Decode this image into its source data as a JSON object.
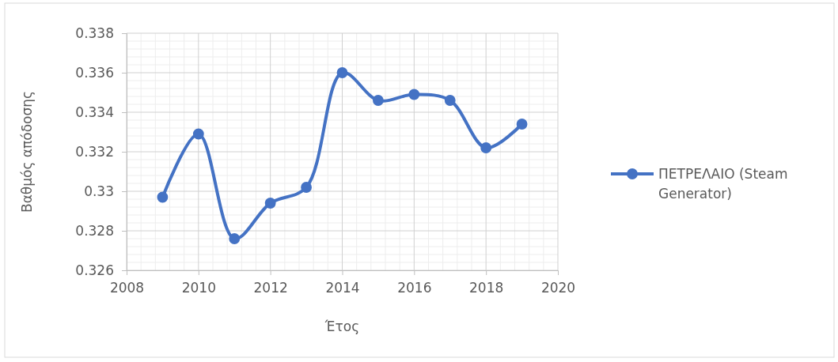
{
  "chart_data": {
    "type": "line",
    "xlabel": "Έτος",
    "ylabel": "Βαθμός απόδοσης",
    "x": [
      2009,
      2010,
      2011,
      2012,
      2013,
      2014,
      2015,
      2016,
      2017,
      2018,
      2019
    ],
    "series": [
      {
        "name": "ΠΕΤΡΕΛΑΙΟ (Steam Generator)",
        "color": "#4472c4",
        "values": [
          0.3297,
          0.3329,
          0.3276,
          0.3294,
          0.3302,
          0.336,
          0.3346,
          0.3349,
          0.3346,
          0.3322,
          0.3334
        ]
      }
    ],
    "xlim": [
      2008,
      2020
    ],
    "xticks": [
      2008,
      2010,
      2012,
      2014,
      2016,
      2018,
      2020
    ],
    "ylim": [
      0.326,
      0.338
    ],
    "yticks": [
      0.326,
      0.328,
      0.33,
      0.332,
      0.334,
      0.336,
      0.338
    ],
    "grid": true,
    "legend": "right",
    "marker": "circle",
    "line_style": "solid"
  }
}
